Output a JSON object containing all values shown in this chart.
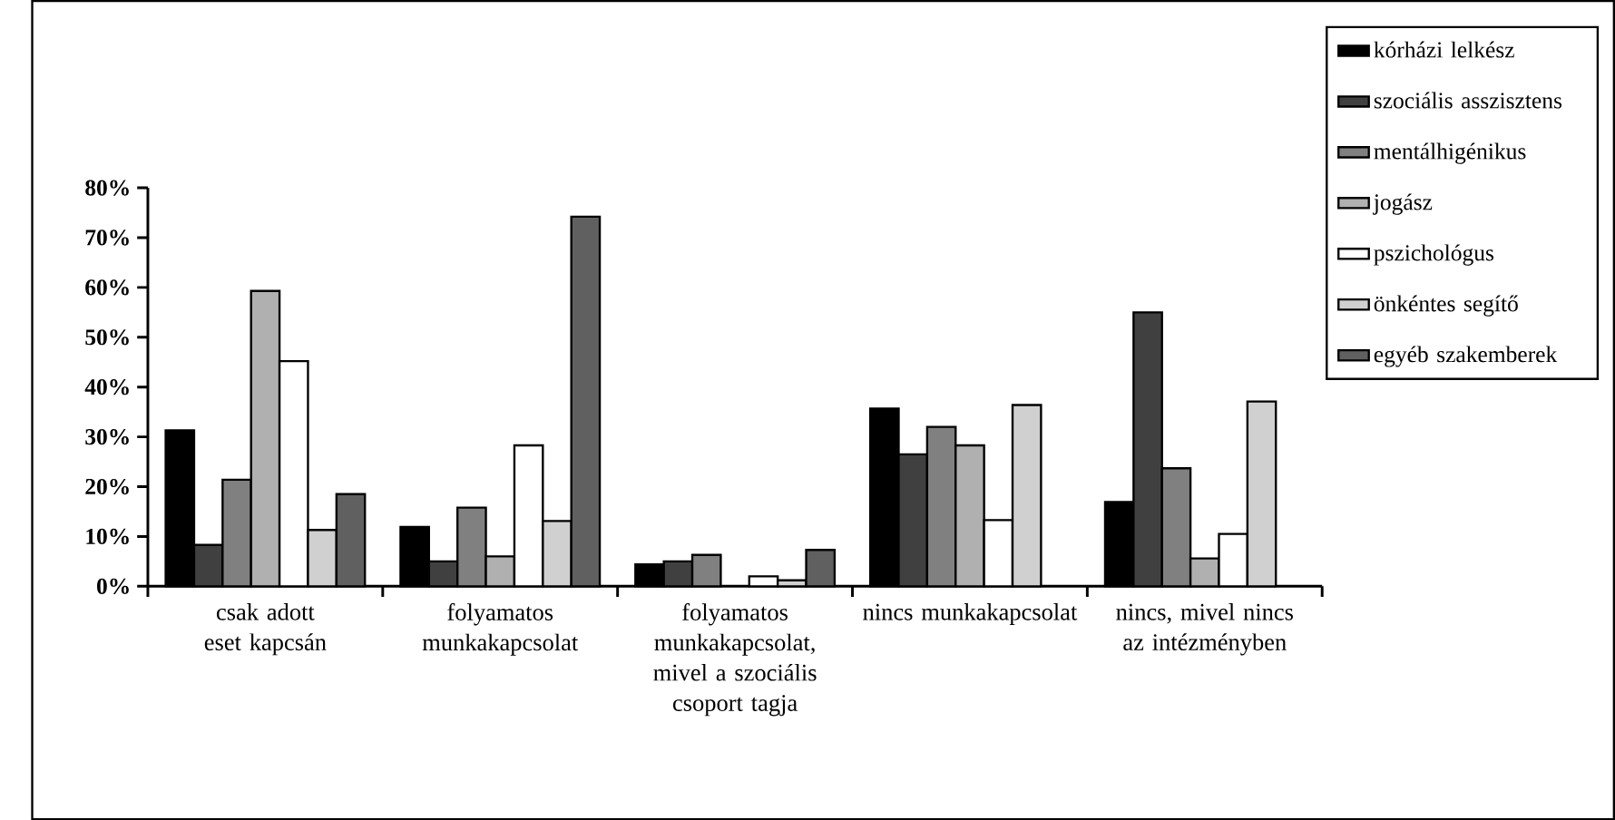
{
  "chart_data": {
    "type": "bar",
    "categories": [
      "csak adott eset kapcsán",
      "folyamatos munkakapcsolat",
      "folyamatos munkakapcsolat, mivel a szociális csoport tagja",
      "nincs munkakapcsolat",
      "nincs, mivel nincs az intézményben"
    ],
    "series": [
      {
        "name": "kórházi lelkész",
        "color": "#000000",
        "values": [
          31.3,
          11.9,
          4.4,
          35.7,
          16.9
        ]
      },
      {
        "name": "szociális asszisztens",
        "color": "#404040",
        "values": [
          8.3,
          5,
          5,
          26.5,
          55
        ]
      },
      {
        "name": "mentálhigénikus",
        "color": "#808080",
        "values": [
          21.4,
          15.8,
          6.3,
          32,
          23.7
        ]
      },
      {
        "name": "jogász",
        "color": "#b0b0b0",
        "values": [
          59.3,
          6,
          null,
          28.3,
          5.6
        ]
      },
      {
        "name": "pszichológus",
        "color": "#ffffff",
        "values": [
          45.2,
          28.3,
          2,
          13.3,
          10.5
        ]
      },
      {
        "name": "önkéntes segítő",
        "color": "#d0d0d0",
        "values": [
          11.3,
          13.1,
          1.2,
          36.4,
          37.1
        ]
      },
      {
        "name": "egyéb szakemberek",
        "color": "#606060",
        "values": [
          18.5,
          74.2,
          7.3,
          null,
          null
        ]
      }
    ],
    "ylim": [
      0,
      80
    ],
    "yticks": [
      {
        "value": 0,
        "label": "0%"
      },
      {
        "value": 10,
        "label": "10%"
      },
      {
        "value": 20,
        "label": "20%"
      },
      {
        "value": 30,
        "label": "30%"
      },
      {
        "value": 40,
        "label": "40%"
      },
      {
        "value": 50,
        "label": "50%"
      },
      {
        "value": 60,
        "label": "60%"
      },
      {
        "value": 70,
        "label": "70%"
      },
      {
        "value": 80,
        "label": "80%"
      }
    ],
    "grid": false,
    "legend": "right"
  }
}
